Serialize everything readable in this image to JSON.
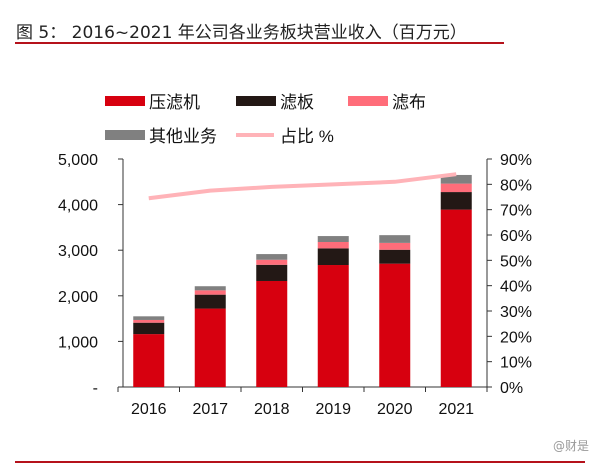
{
  "title": "图 5：  2016~2021 年公司各业务板块营业收入（百万元）",
  "watermark": "@财是",
  "chart_data": {
    "type": "bar",
    "stacked": true,
    "categories": [
      "2016",
      "2017",
      "2018",
      "2019",
      "2020",
      "2021"
    ],
    "series": [
      {
        "name": "压滤机",
        "values": [
          1160,
          1720,
          2325,
          2675,
          2705,
          3890
        ],
        "color": "#d7000f"
      },
      {
        "name": "滤板",
        "values": [
          250,
          305,
          355,
          365,
          305,
          385
        ],
        "color": "#231815"
      },
      {
        "name": "滤布",
        "values": [
          60,
          95,
          110,
          140,
          150,
          185
        ],
        "color": "#ff6d7a"
      },
      {
        "name": "其他业务",
        "values": [
          80,
          90,
          125,
          130,
          170,
          190
        ],
        "color": "#808080"
      }
    ],
    "line_series": {
      "name": "占比 %",
      "axis": "right",
      "values": [
        74.5,
        77.5,
        79,
        80,
        81,
        84
      ],
      "color": "#ffb3b8"
    },
    "ylim": [
      0,
      5000
    ],
    "y_ticks": [
      "-",
      "1,000",
      "2,000",
      "3,000",
      "4,000",
      "5,000"
    ],
    "y2lim": [
      0,
      90
    ],
    "y2_ticks": [
      "0%",
      "10%",
      "20%",
      "30%",
      "40%",
      "50%",
      "60%",
      "70%",
      "80%",
      "90%"
    ],
    "legend": "top",
    "grid": false
  }
}
